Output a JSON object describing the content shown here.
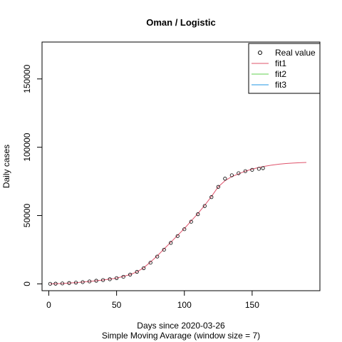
{
  "chart_data": {
    "type": "scatter",
    "title": "Oman / Logistic",
    "xlabel": "Days since 2020-03-26",
    "subtitle": "Simple Moving Avarage (window size = 7)",
    "ylabel": "Daily cases",
    "xlim": [
      -5,
      200
    ],
    "ylim": [
      -5000,
      177000
    ],
    "x_ticks": [
      {
        "value": 0,
        "label": "0"
      },
      {
        "value": 50,
        "label": "50"
      },
      {
        "value": 100,
        "label": "100"
      },
      {
        "value": 150,
        "label": "150"
      }
    ],
    "y_ticks": [
      {
        "value": 0,
        "label": "0"
      },
      {
        "value": 50000,
        "label": "50000"
      },
      {
        "value": 100000,
        "label": "100000"
      },
      {
        "value": 150000,
        "label": "150000"
      }
    ],
    "legend_position": "top-right",
    "legend": [
      {
        "label": "Real value",
        "marker": "circle",
        "color": "#000000"
      },
      {
        "label": "fit1",
        "marker": "line",
        "color": "#DF536B"
      },
      {
        "label": "fit2",
        "marker": "line",
        "color": "#61D04F"
      },
      {
        "label": "fit3",
        "marker": "line",
        "color": "#2297E6"
      }
    ],
    "series": [
      {
        "name": "Real value",
        "kind": "points",
        "color": "#000000",
        "x": [
          1,
          5,
          10,
          15,
          20,
          25,
          30,
          35,
          40,
          45,
          50,
          55,
          60,
          65,
          70,
          75,
          80,
          85,
          90,
          95,
          100,
          105,
          110,
          115,
          120,
          125,
          130,
          135,
          140,
          145,
          150,
          155,
          158
        ],
        "y": [
          50,
          150,
          300,
          600,
          900,
          1300,
          1800,
          2300,
          2800,
          3400,
          4200,
          5200,
          6800,
          8800,
          11500,
          15500,
          20000,
          25000,
          30000,
          35000,
          40000,
          45500,
          51000,
          57000,
          63500,
          71000,
          77000,
          79500,
          81000,
          82500,
          83500,
          84200,
          84700
        ]
      },
      {
        "name": "fit1",
        "kind": "line",
        "color": "#DF536B",
        "x": [
          1,
          10,
          20,
          30,
          40,
          50,
          60,
          65,
          70,
          75,
          80,
          85,
          90,
          95,
          100,
          105,
          110,
          115,
          120,
          125,
          130,
          135,
          140,
          145,
          150,
          155,
          160,
          165,
          170,
          175,
          180,
          185,
          190
        ],
        "y": [
          50,
          300,
          900,
          1800,
          2800,
          4200,
          6800,
          8800,
          11800,
          16000,
          20500,
          25500,
          30500,
          35500,
          40500,
          46000,
          51500,
          57500,
          64000,
          71000,
          75500,
          78500,
          80500,
          82500,
          84000,
          85200,
          86200,
          87000,
          87600,
          88100,
          88400,
          88700,
          88900
        ]
      }
    ]
  }
}
